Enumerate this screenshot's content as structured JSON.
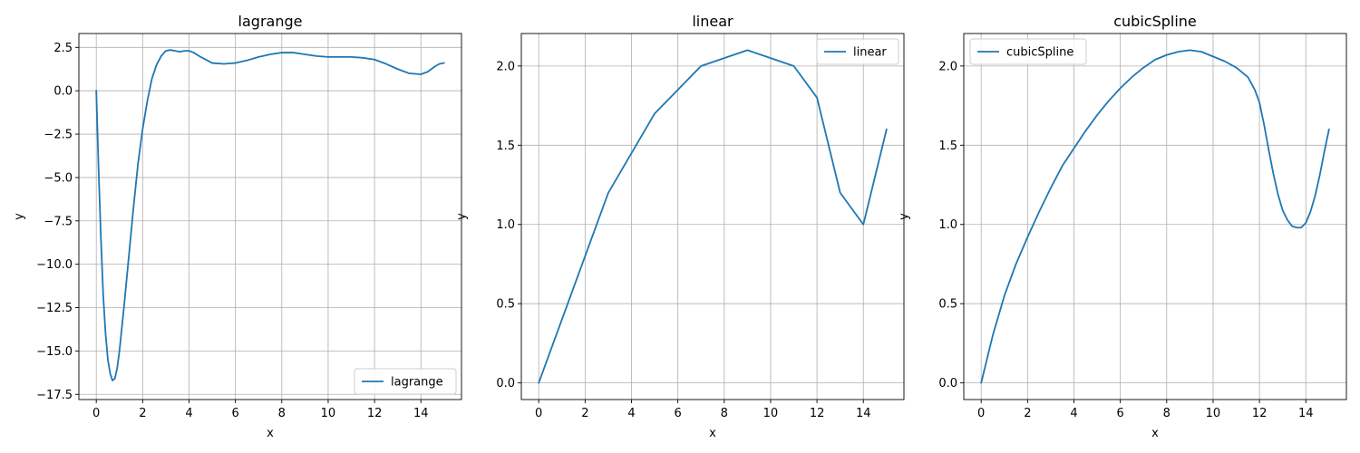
{
  "figure": {
    "charts": [
      {
        "type": "line",
        "title": "lagrange",
        "xlabel": "x",
        "ylabel": "y",
        "xlim": [
          -0.75,
          15.75
        ],
        "ylim": [
          -17.8,
          3.3
        ],
        "xticks": [
          0,
          2,
          4,
          6,
          8,
          10,
          12,
          14
        ],
        "yticks": [
          2.5,
          0.0,
          -2.5,
          -5.0,
          -7.5,
          -10.0,
          -12.5,
          -15.0,
          -17.5
        ],
        "ytick_labels": [
          "2.5",
          "0.0",
          "−2.5",
          "−5.0",
          "−7.5",
          "−10.0",
          "−12.5",
          "−15.0",
          "−17.5"
        ],
        "grid": true,
        "legend_position": "lower-right",
        "series": [
          {
            "name": "lagrange",
            "color": "#1f77b4",
            "x": [
              0,
              0.1,
              0.2,
              0.3,
              0.4,
              0.5,
              0.6,
              0.7,
              0.8,
              0.9,
              1.0,
              1.2,
              1.4,
              1.6,
              1.8,
              2.0,
              2.2,
              2.4,
              2.6,
              2.8,
              3.0,
              3.2,
              3.4,
              3.6,
              3.8,
              4.0,
              4.2,
              4.5,
              5.0,
              5.5,
              6.0,
              6.5,
              7.0,
              7.5,
              8.0,
              8.5,
              9.0,
              9.5,
              10.0,
              10.5,
              11.0,
              11.5,
              12.0,
              12.5,
              13.0,
              13.5,
              14.0,
              14.3,
              14.6,
              14.8,
              15.0
            ],
            "values": [
              0,
              -4.5,
              -8.5,
              -11.8,
              -14.0,
              -15.5,
              -16.3,
              -16.7,
              -16.6,
              -16.0,
              -15.0,
              -12.4,
              -9.6,
              -6.8,
              -4.2,
              -2.2,
              -0.6,
              0.7,
              1.5,
              2.0,
              2.3,
              2.35,
              2.3,
              2.25,
              2.3,
              2.3,
              2.2,
              1.95,
              1.6,
              1.55,
              1.6,
              1.75,
              1.95,
              2.1,
              2.2,
              2.2,
              2.1,
              2.0,
              1.95,
              1.95,
              1.95,
              1.9,
              1.8,
              1.55,
              1.25,
              1.0,
              0.95,
              1.1,
              1.4,
              1.55,
              1.6
            ]
          }
        ]
      },
      {
        "type": "line",
        "title": "linear",
        "xlabel": "x",
        "ylabel": "y",
        "xlim": [
          -0.75,
          15.75
        ],
        "ylim": [
          -0.105,
          2.205
        ],
        "xticks": [
          0,
          2,
          4,
          6,
          8,
          10,
          12,
          14
        ],
        "yticks": [
          0.0,
          0.5,
          1.0,
          1.5,
          2.0
        ],
        "ytick_labels": [
          "0.0",
          "0.5",
          "1.0",
          "1.5",
          "2.0"
        ],
        "grid": true,
        "legend_position": "upper-right",
        "series": [
          {
            "name": "linear",
            "color": "#1f77b4",
            "x": [
              0,
              3,
              5,
              7,
              9,
              11,
              12,
              13,
              14,
              15
            ],
            "values": [
              0.0,
              1.2,
              1.7,
              2.0,
              2.1,
              2.0,
              1.8,
              1.2,
              1.0,
              1.6
            ]
          }
        ]
      },
      {
        "type": "line",
        "title": "cubicSpline",
        "xlabel": "x",
        "ylabel": "y",
        "xlim": [
          -0.75,
          15.75
        ],
        "ylim": [
          -0.105,
          2.205
        ],
        "xticks": [
          0,
          2,
          4,
          6,
          8,
          10,
          12,
          14
        ],
        "yticks": [
          0.0,
          0.5,
          1.0,
          1.5,
          2.0
        ],
        "ytick_labels": [
          "0.0",
          "0.5",
          "1.0",
          "1.5",
          "2.0"
        ],
        "grid": true,
        "legend_position": "upper-left",
        "series": [
          {
            "name": "cubicSpline",
            "color": "#1f77b4",
            "x": [
              0,
              0.5,
              1,
              1.5,
              2,
              2.5,
              3,
              3.5,
              4,
              4.5,
              5,
              5.5,
              6,
              6.5,
              7,
              7.5,
              8,
              8.5,
              9,
              9.5,
              10,
              10.5,
              11,
              11.5,
              11.8,
              12,
              12.2,
              12.4,
              12.6,
              12.8,
              13,
              13.2,
              13.4,
              13.6,
              13.8,
              14,
              14.2,
              14.4,
              14.6,
              14.8,
              15
            ],
            "values": [
              0.0,
              0.3,
              0.55,
              0.75,
              0.92,
              1.08,
              1.23,
              1.37,
              1.48,
              1.59,
              1.69,
              1.78,
              1.86,
              1.93,
              1.99,
              2.04,
              2.07,
              2.09,
              2.1,
              2.09,
              2.06,
              2.03,
              1.99,
              1.93,
              1.85,
              1.77,
              1.63,
              1.47,
              1.32,
              1.19,
              1.09,
              1.03,
              0.99,
              0.98,
              0.98,
              1.01,
              1.08,
              1.18,
              1.31,
              1.46,
              1.6
            ]
          }
        ]
      }
    ]
  }
}
